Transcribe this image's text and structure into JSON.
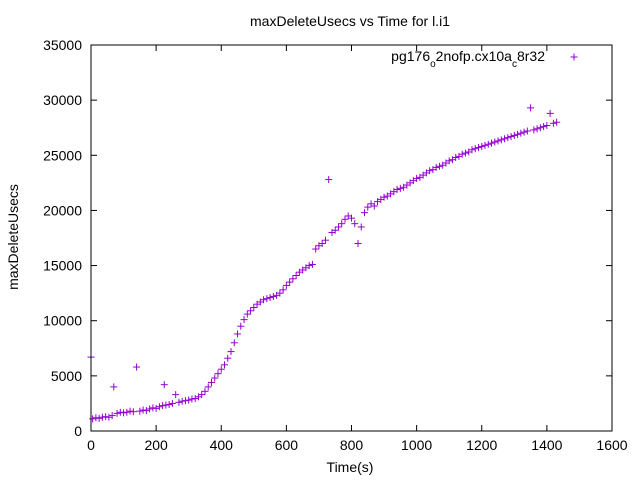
{
  "chart_data": {
    "type": "scatter",
    "title": "maxDeleteUsecs vs Time for l.i1",
    "xlabel": "Time(s)",
    "ylabel": "maxDeleteUsecs",
    "xlim": [
      0,
      1600
    ],
    "ylim": [
      0,
      35000
    ],
    "x_ticks": [
      "0",
      "200",
      "400",
      "600",
      "800",
      "1000",
      "1200",
      "1400",
      "1600"
    ],
    "y_ticks": [
      "0",
      "5000",
      "10000",
      "15000",
      "20000",
      "25000",
      "30000",
      "35000"
    ],
    "grid": false,
    "legend_position": "top-right",
    "marker": "+",
    "color": "#9400d3",
    "series": [
      {
        "name": "pg176o2nofp.cx10ac8r32",
        "legend_parts": [
          "pg176",
          "o",
          "2nofp.cx10a",
          "c",
          "8r32"
        ],
        "points": [
          [
            0,
            6700
          ],
          [
            5,
            1100
          ],
          [
            15,
            1200
          ],
          [
            25,
            1150
          ],
          [
            35,
            1250
          ],
          [
            45,
            1300
          ],
          [
            55,
            1250
          ],
          [
            65,
            1400
          ],
          [
            70,
            4000
          ],
          [
            80,
            1600
          ],
          [
            90,
            1700
          ],
          [
            100,
            1650
          ],
          [
            110,
            1700
          ],
          [
            120,
            1800
          ],
          [
            130,
            1750
          ],
          [
            140,
            5800
          ],
          [
            150,
            1800
          ],
          [
            160,
            1900
          ],
          [
            170,
            1850
          ],
          [
            180,
            2000
          ],
          [
            190,
            2100
          ],
          [
            200,
            2050
          ],
          [
            210,
            2200
          ],
          [
            220,
            2300
          ],
          [
            225,
            4200
          ],
          [
            230,
            2350
          ],
          [
            240,
            2400
          ],
          [
            250,
            2500
          ],
          [
            260,
            3300
          ],
          [
            270,
            2600
          ],
          [
            280,
            2700
          ],
          [
            290,
            2750
          ],
          [
            300,
            2800
          ],
          [
            310,
            2900
          ],
          [
            320,
            2950
          ],
          [
            330,
            3100
          ],
          [
            340,
            3300
          ],
          [
            350,
            3600
          ],
          [
            360,
            4000
          ],
          [
            370,
            4400
          ],
          [
            380,
            4800
          ],
          [
            390,
            5200
          ],
          [
            400,
            5600
          ],
          [
            410,
            6000
          ],
          [
            420,
            6600
          ],
          [
            430,
            7200
          ],
          [
            440,
            8000
          ],
          [
            450,
            8800
          ],
          [
            460,
            9500
          ],
          [
            470,
            10100
          ],
          [
            480,
            10600
          ],
          [
            490,
            10900
          ],
          [
            500,
            11200
          ],
          [
            510,
            11500
          ],
          [
            520,
            11700
          ],
          [
            530,
            11900
          ],
          [
            540,
            12000
          ],
          [
            550,
            12100
          ],
          [
            560,
            12200
          ],
          [
            570,
            12300
          ],
          [
            580,
            12500
          ],
          [
            590,
            12800
          ],
          [
            600,
            13200
          ],
          [
            610,
            13500
          ],
          [
            620,
            13800
          ],
          [
            630,
            14100
          ],
          [
            640,
            14400
          ],
          [
            650,
            14600
          ],
          [
            660,
            14800
          ],
          [
            670,
            15000
          ],
          [
            680,
            15100
          ],
          [
            690,
            16500
          ],
          [
            700,
            16800
          ],
          [
            710,
            17000
          ],
          [
            720,
            17300
          ],
          [
            730,
            22800
          ],
          [
            740,
            18000
          ],
          [
            750,
            18200
          ],
          [
            760,
            18500
          ],
          [
            770,
            18800
          ],
          [
            780,
            19200
          ],
          [
            790,
            19500
          ],
          [
            800,
            19300
          ],
          [
            810,
            18800
          ],
          [
            820,
            17000
          ],
          [
            830,
            18500
          ],
          [
            840,
            19800
          ],
          [
            850,
            20300
          ],
          [
            860,
            20600
          ],
          [
            870,
            20400
          ],
          [
            880,
            20800
          ],
          [
            890,
            21000
          ],
          [
            900,
            21200
          ],
          [
            910,
            21300
          ],
          [
            920,
            21500
          ],
          [
            930,
            21700
          ],
          [
            940,
            21900
          ],
          [
            950,
            22000
          ],
          [
            960,
            22100
          ],
          [
            970,
            22300
          ],
          [
            980,
            22500
          ],
          [
            990,
            22700
          ],
          [
            1000,
            22900
          ],
          [
            1010,
            23000
          ],
          [
            1020,
            23200
          ],
          [
            1030,
            23400
          ],
          [
            1040,
            23600
          ],
          [
            1050,
            23700
          ],
          [
            1060,
            23900
          ],
          [
            1070,
            24000
          ],
          [
            1080,
            24100
          ],
          [
            1090,
            24300
          ],
          [
            1100,
            24500
          ],
          [
            1110,
            24600
          ],
          [
            1120,
            24800
          ],
          [
            1130,
            24900
          ],
          [
            1140,
            25100
          ],
          [
            1150,
            25200
          ],
          [
            1160,
            25300
          ],
          [
            1170,
            25500
          ],
          [
            1180,
            25600
          ],
          [
            1190,
            25700
          ],
          [
            1200,
            25800
          ],
          [
            1210,
            25900
          ],
          [
            1220,
            26000
          ],
          [
            1230,
            26100
          ],
          [
            1240,
            26200
          ],
          [
            1250,
            26300
          ],
          [
            1260,
            26400
          ],
          [
            1270,
            26500
          ],
          [
            1280,
            26600
          ],
          [
            1290,
            26700
          ],
          [
            1300,
            26800
          ],
          [
            1310,
            26900
          ],
          [
            1320,
            27000
          ],
          [
            1330,
            27100
          ],
          [
            1340,
            27200
          ],
          [
            1350,
            29300
          ],
          [
            1360,
            27300
          ],
          [
            1370,
            27400
          ],
          [
            1380,
            27500
          ],
          [
            1390,
            27600
          ],
          [
            1400,
            27700
          ],
          [
            1410,
            28800
          ],
          [
            1420,
            27900
          ],
          [
            1430,
            28000
          ]
        ]
      }
    ]
  }
}
